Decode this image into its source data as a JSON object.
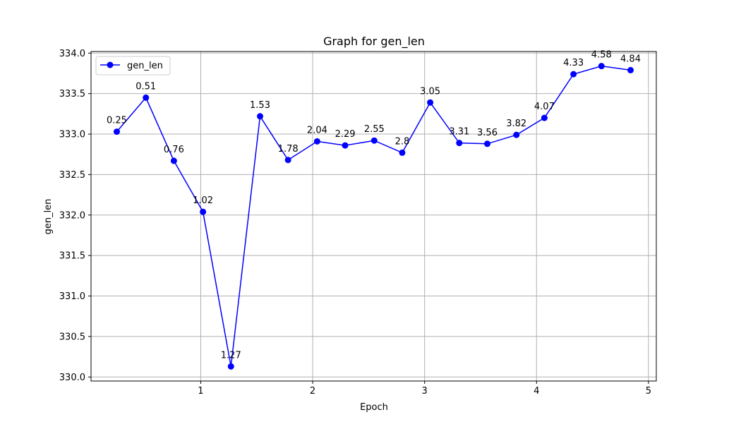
{
  "chart_data": {
    "type": "line",
    "title": "Graph for gen_len",
    "xlabel": "Epoch",
    "ylabel": "gen_len",
    "xlim": [
      0.02,
      5.07
    ],
    "ylim": [
      329.95,
      334.02
    ],
    "x_ticks": [
      1,
      2,
      3,
      4,
      5
    ],
    "y_ticks": [
      330.0,
      330.5,
      331.0,
      331.5,
      332.0,
      332.5,
      333.0,
      333.5,
      334.0
    ],
    "x_tick_labels": [
      "1",
      "2",
      "3",
      "4",
      "5"
    ],
    "y_tick_labels": [
      "330.0",
      "330.5",
      "331.0",
      "331.5",
      "332.0",
      "332.5",
      "333.0",
      "333.5",
      "334.0"
    ],
    "grid": true,
    "legend_position": "top-left",
    "series": [
      {
        "name": "gen_len",
        "color": "#0000ff",
        "marker": "circle",
        "x": [
          0.25,
          0.51,
          0.76,
          1.02,
          1.27,
          1.53,
          1.78,
          2.04,
          2.29,
          2.55,
          2.8,
          3.05,
          3.31,
          3.56,
          3.82,
          4.07,
          4.33,
          4.58,
          4.84
        ],
        "y": [
          333.03,
          333.45,
          332.67,
          332.04,
          330.13,
          333.22,
          332.68,
          332.91,
          332.86,
          332.92,
          332.77,
          333.39,
          332.89,
          332.88,
          332.99,
          333.2,
          333.74,
          333.84,
          333.79
        ],
        "point_labels": [
          "0.25",
          "0.51",
          "0.76",
          "1.02",
          "1.27",
          "1.53",
          "1.78",
          "2.04",
          "2.29",
          "2.55",
          "2.8",
          "3.05",
          "3.31",
          "3.56",
          "3.82",
          "4.07",
          "4.33",
          "4.58",
          "4.84"
        ]
      }
    ]
  }
}
